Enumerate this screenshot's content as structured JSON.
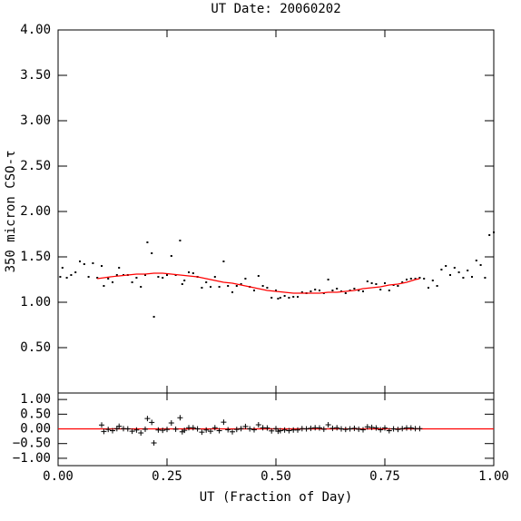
{
  "chart_data": [
    {
      "type": "scatter",
      "title": "UT Date: 20060202",
      "y_label": "350 micron CSO-τ",
      "xlim": [
        0,
        1
      ],
      "ylim": [
        0,
        4
      ],
      "yticks": [
        {
          "value": 0.5,
          "label": "0.50"
        },
        {
          "value": 1,
          "label": "1.00"
        },
        {
          "value": 1.5,
          "label": "1.50"
        },
        {
          "value": 2,
          "label": "2.00"
        },
        {
          "value": 2.5,
          "label": "2.50"
        },
        {
          "value": 3,
          "label": "3.00"
        },
        {
          "value": 3.5,
          "label": "3.50"
        },
        {
          "value": 4,
          "label": "4.00"
        }
      ],
      "series": [
        {
          "style": "points",
          "color": "#000000",
          "x": [
            0.005,
            0.01,
            0.02,
            0.03,
            0.04,
            0.05,
            0.06,
            0.07,
            0.08,
            0.09,
            0.1,
            0.105,
            0.115,
            0.125,
            0.135,
            0.14,
            0.15,
            0.16,
            0.17,
            0.18,
            0.19,
            0.2,
            0.205,
            0.215,
            0.22,
            0.23,
            0.24,
            0.25,
            0.26,
            0.27,
            0.28,
            0.285,
            0.29,
            0.3,
            0.31,
            0.32,
            0.33,
            0.34,
            0.35,
            0.36,
            0.37,
            0.38,
            0.39,
            0.4,
            0.41,
            0.42,
            0.43,
            0.44,
            0.45,
            0.46,
            0.47,
            0.48,
            0.49,
            0.5,
            0.505,
            0.51,
            0.52,
            0.53,
            0.54,
            0.55,
            0.56,
            0.57,
            0.58,
            0.59,
            0.6,
            0.61,
            0.62,
            0.63,
            0.64,
            0.65,
            0.66,
            0.67,
            0.68,
            0.69,
            0.7,
            0.71,
            0.72,
            0.73,
            0.74,
            0.75,
            0.76,
            0.77,
            0.78,
            0.79,
            0.8,
            0.81,
            0.82,
            0.83,
            0.84,
            0.85,
            0.86,
            0.87,
            0.88,
            0.89,
            0.9,
            0.91,
            0.92,
            0.93,
            0.94,
            0.95,
            0.96,
            0.97,
            0.98,
            0.99,
            1.0
          ],
          "values": [
            1.28,
            1.38,
            1.27,
            1.3,
            1.33,
            1.45,
            1.42,
            1.28,
            1.43,
            1.27,
            1.4,
            1.18,
            1.26,
            1.22,
            1.3,
            1.38,
            1.3,
            1.3,
            1.22,
            1.27,
            1.17,
            1.3,
            1.66,
            1.54,
            0.84,
            1.28,
            1.27,
            1.3,
            1.51,
            1.3,
            1.68,
            1.2,
            1.24,
            1.33,
            1.32,
            1.28,
            1.16,
            1.22,
            1.17,
            1.28,
            1.17,
            1.45,
            1.18,
            1.11,
            1.18,
            1.2,
            1.26,
            1.17,
            1.13,
            1.29,
            1.18,
            1.16,
            1.05,
            1.13,
            1.04,
            1.05,
            1.07,
            1.05,
            1.06,
            1.06,
            1.11,
            1.1,
            1.12,
            1.14,
            1.13,
            1.1,
            1.25,
            1.13,
            1.15,
            1.12,
            1.1,
            1.13,
            1.15,
            1.13,
            1.12,
            1.23,
            1.21,
            1.2,
            1.14,
            1.21,
            1.13,
            1.19,
            1.18,
            1.22,
            1.25,
            1.26,
            1.26,
            1.27,
            1.26,
            1.16,
            1.24,
            1.18,
            1.36,
            1.4,
            1.3,
            1.38,
            1.33,
            1.27,
            1.35,
            1.28,
            1.46,
            1.41,
            1.27,
            1.74,
            1.77
          ]
        },
        {
          "style": "line",
          "color": "#ff0000",
          "x": [
            0.09,
            0.12,
            0.14,
            0.16,
            0.18,
            0.2,
            0.22,
            0.24,
            0.26,
            0.28,
            0.3,
            0.32,
            0.34,
            0.36,
            0.38,
            0.4,
            0.42,
            0.44,
            0.46,
            0.48,
            0.5,
            0.52,
            0.54,
            0.56,
            0.58,
            0.6,
            0.62,
            0.64,
            0.66,
            0.68,
            0.7,
            0.72,
            0.74,
            0.76,
            0.78,
            0.8,
            0.82,
            0.83
          ],
          "values": [
            1.26,
            1.28,
            1.29,
            1.3,
            1.31,
            1.31,
            1.32,
            1.32,
            1.31,
            1.3,
            1.29,
            1.28,
            1.26,
            1.24,
            1.22,
            1.21,
            1.19,
            1.17,
            1.15,
            1.13,
            1.12,
            1.11,
            1.1,
            1.1,
            1.1,
            1.1,
            1.11,
            1.11,
            1.12,
            1.13,
            1.15,
            1.16,
            1.17,
            1.19,
            1.2,
            1.22,
            1.25,
            1.26
          ]
        }
      ]
    },
    {
      "type": "scatter",
      "x_label": "UT (Fraction of Day)",
      "xlim": [
        0,
        1
      ],
      "ylim": [
        -1.25,
        1.22
      ],
      "xticks": [
        {
          "value": 0,
          "label": "0.00"
        },
        {
          "value": 0.25,
          "label": "0.25"
        },
        {
          "value": 0.5,
          "label": "0.50"
        },
        {
          "value": 0.75,
          "label": "0.75"
        },
        {
          "value": 1,
          "label": "1.00"
        }
      ],
      "yticks": [
        {
          "value": -1,
          "label": "−1.00"
        },
        {
          "value": -0.5,
          "label": "−0.50"
        },
        {
          "value": 0,
          "label": "0.00"
        },
        {
          "value": 0.5,
          "label": "0.50"
        },
        {
          "value": 1,
          "label": "1.00"
        }
      ],
      "series": [
        {
          "style": "line",
          "color": "#ff0000",
          "x": [
            0,
            1
          ],
          "values": [
            0,
            0
          ]
        },
        {
          "style": "plus",
          "color": "#000000",
          "x": [
            0.1,
            0.105,
            0.115,
            0.125,
            0.135,
            0.14,
            0.15,
            0.16,
            0.17,
            0.18,
            0.19,
            0.2,
            0.205,
            0.215,
            0.22,
            0.23,
            0.24,
            0.25,
            0.26,
            0.27,
            0.28,
            0.285,
            0.29,
            0.3,
            0.31,
            0.32,
            0.33,
            0.34,
            0.35,
            0.36,
            0.37,
            0.38,
            0.39,
            0.4,
            0.41,
            0.42,
            0.43,
            0.44,
            0.45,
            0.46,
            0.47,
            0.48,
            0.49,
            0.5,
            0.505,
            0.51,
            0.52,
            0.53,
            0.54,
            0.55,
            0.56,
            0.57,
            0.58,
            0.59,
            0.6,
            0.61,
            0.62,
            0.63,
            0.64,
            0.65,
            0.66,
            0.67,
            0.68,
            0.69,
            0.7,
            0.71,
            0.72,
            0.73,
            0.74,
            0.75,
            0.76,
            0.77,
            0.78,
            0.79,
            0.8,
            0.81,
            0.82,
            0.83
          ],
          "values": [
            0.13,
            -0.09,
            -0.02,
            -0.06,
            0.01,
            0.09,
            0.01,
            0.0,
            -0.08,
            -0.04,
            -0.14,
            -0.01,
            0.35,
            0.22,
            -0.48,
            -0.04,
            -0.05,
            -0.02,
            0.2,
            -0.01,
            0.38,
            -0.1,
            -0.05,
            0.04,
            0.04,
            0.0,
            -0.11,
            -0.04,
            -0.08,
            0.04,
            -0.06,
            0.23,
            -0.03,
            -0.1,
            -0.02,
            0.01,
            0.08,
            0.0,
            -0.03,
            0.14,
            0.04,
            0.03,
            -0.07,
            0.01,
            -0.08,
            -0.06,
            -0.04,
            -0.06,
            -0.04,
            -0.04,
            0.01,
            0.0,
            0.02,
            0.04,
            0.03,
            -0.01,
            0.14,
            0.02,
            0.04,
            0.0,
            -0.02,
            0.0,
            0.02,
            -0.01,
            -0.03,
            0.07,
            0.05,
            0.03,
            -0.03,
            0.03,
            -0.06,
            0.0,
            -0.02,
            0.01,
            0.03,
            0.03,
            0.01,
            0.01
          ]
        }
      ]
    }
  ]
}
